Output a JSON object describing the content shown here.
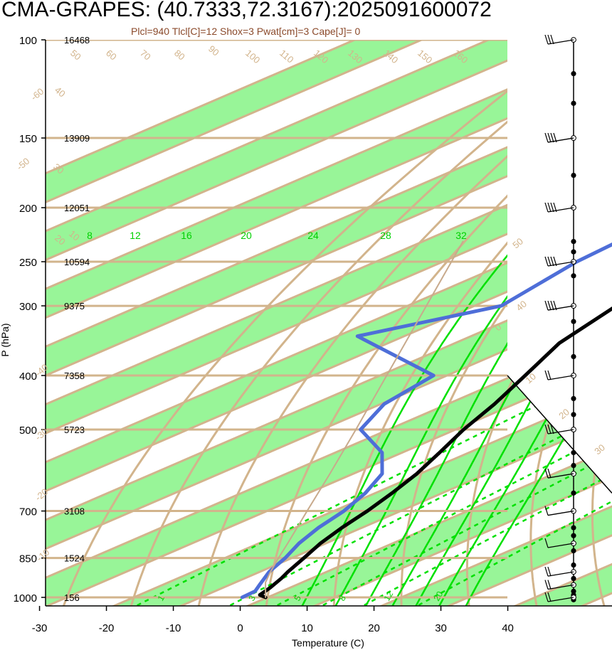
{
  "title": "CMA-GRAPES: (40.7333,72.3167):2025091600072",
  "subtitle": "Plcl=940 Tlcl[C]=12 Shox=3 Pwat[cm]=3 Cape[J]= 0",
  "chart_data": {
    "type": "line",
    "diagram": "skew-T log-P",
    "xlabel": "Temperature (C)",
    "ylabel": "P (hPa)",
    "xlim": [
      -33,
      52
    ],
    "ylim": [
      1050,
      100
    ],
    "y_scale": "log",
    "x_ticks": [
      -30,
      -20,
      -10,
      0,
      10,
      20,
      30,
      40
    ],
    "pressure_levels": [
      {
        "p": 100,
        "label": "100",
        "height": "16468"
      },
      {
        "p": 150,
        "label": "150",
        "height": "13909"
      },
      {
        "p": 200,
        "label": "200",
        "height": "12051"
      },
      {
        "p": 250,
        "label": "250",
        "height": "10594"
      },
      {
        "p": 300,
        "label": "300",
        "height": "9375"
      },
      {
        "p": 400,
        "label": "400",
        "height": "7358"
      },
      {
        "p": 500,
        "label": "500",
        "height": "5723"
      },
      {
        "p": 700,
        "label": "700",
        "height": "3108"
      },
      {
        "p": 850,
        "label": "850",
        "height": "1524"
      },
      {
        "p": 1000,
        "label": "1000",
        "height": "156"
      }
    ],
    "series": [
      {
        "color": "#000000",
        "points": [
          [
            1000,
            -0.3
          ],
          [
            990,
            -2.0
          ],
          [
            975,
            -2.5
          ],
          [
            960,
            -3.0
          ],
          [
            925,
            -4.5
          ],
          [
            900,
            -5.8
          ],
          [
            850,
            -8.2
          ],
          [
            800,
            -10.8
          ],
          [
            750,
            -13.0
          ],
          [
            700,
            -15.0
          ],
          [
            650,
            -17.5
          ],
          [
            600,
            -20.5
          ],
          [
            550,
            -24.4
          ],
          [
            500,
            -28.8
          ],
          [
            450,
            -33.0
          ],
          [
            400,
            -38.3
          ],
          [
            350,
            -44.4
          ],
          [
            300,
            -48.8
          ],
          [
            275,
            -53.3
          ],
          [
            250,
            -57.4
          ],
          [
            225,
            -57.0
          ],
          [
            200,
            -58.0
          ],
          [
            175,
            -60.0
          ],
          [
            150,
            -66.0
          ],
          [
            125,
            -72.0
          ],
          [
            100,
            -77.5
          ]
        ]
      },
      {
        "color": "#4E6ED8",
        "points": [
          [
            1000,
            -3.8
          ],
          [
            975,
            -4.0
          ],
          [
            950,
            -5.5
          ],
          [
            900,
            -8.6
          ],
          [
            850,
            -11.0
          ],
          [
            800,
            -14.0
          ],
          [
            750,
            -16.5
          ],
          [
            700,
            -18.5
          ],
          [
            650,
            -21.5
          ],
          [
            600,
            -25.7
          ],
          [
            550,
            -33.0
          ],
          [
            500,
            -44.2
          ],
          [
            450,
            -49.5
          ],
          [
            400,
            -52.0
          ],
          [
            340,
            -77.0
          ],
          [
            300,
            -66.0
          ],
          [
            250,
            -70.0
          ],
          [
            225,
            -71.0
          ],
          [
            200,
            -73.5
          ],
          [
            175,
            -77.0
          ],
          [
            150,
            -84.0
          ],
          [
            125,
            -89.0
          ],
          [
            100,
            -89.0
          ]
        ]
      },
      {
        "color": "#C8AA8C",
        "points": [
          [
            1000,
            -0.3
          ],
          [
            940,
            -5.5
          ],
          [
            900,
            -8.4
          ],
          [
            850,
            -12.0
          ],
          [
            800,
            -15.7
          ],
          [
            700,
            -24.0
          ],
          [
            600,
            -33.5
          ],
          [
            500,
            -44.9
          ],
          [
            400,
            -59.0
          ],
          [
            300,
            -77.2
          ],
          [
            230,
            -94.0
          ]
        ]
      }
    ],
    "isotherm_labels": [
      -60,
      -50,
      -40,
      -30,
      -20,
      -10,
      0,
      10,
      20,
      30,
      40,
      50
    ],
    "dry_adiabat_labels": [
      10,
      20,
      30,
      40,
      50,
      60,
      70,
      80,
      90,
      100,
      110,
      120,
      130,
      140,
      150,
      160
    ],
    "moist_adiabat_labels": [
      8,
      12,
      16,
      20,
      24,
      28,
      32
    ],
    "mixing_ratio_labels": [
      1,
      3,
      5,
      8,
      12,
      20
    ],
    "wind_profile": [
      {
        "p": 100,
        "barbs": 3
      },
      {
        "p": 150,
        "barbs": 4
      },
      {
        "p": 200,
        "barbs": 4
      },
      {
        "p": 250,
        "barbs": 4
      },
      {
        "p": 300,
        "barbs": 4
      },
      {
        "p": 400,
        "barbs": 2
      },
      {
        "p": 500,
        "barbs": 3
      },
      {
        "p": 600,
        "barbs": 2
      },
      {
        "p": 700,
        "barbs": 1
      },
      {
        "p": 800,
        "barbs": 1
      },
      {
        "p": 900,
        "barbs": 2
      },
      {
        "p": 950,
        "barbs": 2
      },
      {
        "p": 1000,
        "barbs": 2
      }
    ],
    "colors": {
      "isopleth": "#D2B48C",
      "band": "#98F598",
      "moist": "#00E000",
      "label_tan": "#D2B48C",
      "label_green": "#00D000"
    }
  }
}
